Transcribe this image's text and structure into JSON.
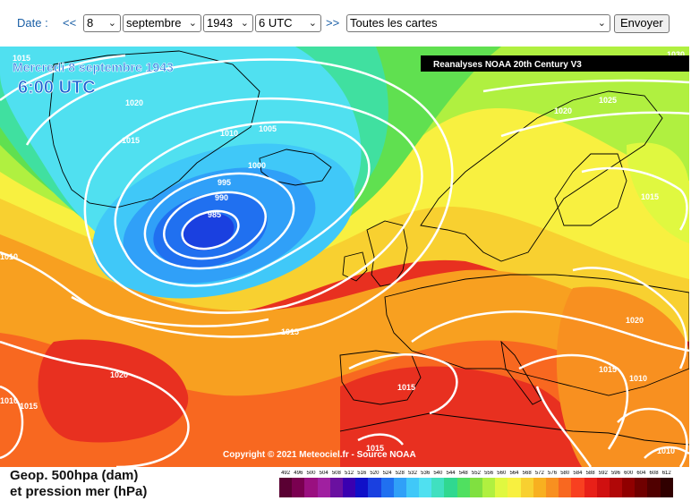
{
  "form": {
    "date_label": "Date :",
    "prev_label": "<<",
    "next_label": ">>",
    "day": "8",
    "month": "septembre",
    "year": "1943",
    "hour": "6 UTC",
    "maps": "Toutes les cartes",
    "submit_label": "Envoyer"
  },
  "map": {
    "date_text": "Mercredi 8 septembre 1943",
    "time_text": "6:00 UTC",
    "source_banner": "Reanalyses NOAA 20th Century V3",
    "copyright": "Copyright © 2021 Meteociel.fr - Source NOAA",
    "pressure_labels": [
      "1015",
      "1020",
      "1015",
      "1010",
      "1005",
      "1000",
      "995",
      "990",
      "985",
      "1020",
      "1025",
      "1015",
      "1010",
      "1015",
      "1020",
      "1015",
      "1010",
      "1010",
      "1015",
      "1020",
      "1010",
      "1015",
      "1030",
      "1015"
    ]
  },
  "legend": {
    "line1": "Geop. 500hpa (dam)",
    "line2": "et pression mer (hPa)",
    "ticks": [
      "492",
      "496",
      "500",
      "504",
      "508",
      "512",
      "516",
      "520",
      "524",
      "528",
      "532",
      "536",
      "540",
      "544",
      "548",
      "552",
      "556",
      "560",
      "564",
      "568",
      "572",
      "576",
      "580",
      "584",
      "588",
      "592",
      "596",
      "600",
      "604",
      "608",
      "612"
    ],
    "colors": [
      "#5a0033",
      "#7a0050",
      "#9a1080",
      "#a020a0",
      "#6a10a0",
      "#3a00b0",
      "#1010c8",
      "#1a40e0",
      "#2070f0",
      "#30a0f8",
      "#40c8f8",
      "#50e0f0",
      "#40e0c0",
      "#30d890",
      "#50e060",
      "#80e040",
      "#b0f040",
      "#e0f840",
      "#f8f040",
      "#f8d030",
      "#f8b020",
      "#f89020",
      "#f86820",
      "#f84020",
      "#e82018",
      "#d01010",
      "#b00808",
      "#900000",
      "#700000",
      "#500000",
      "#300000"
    ]
  }
}
